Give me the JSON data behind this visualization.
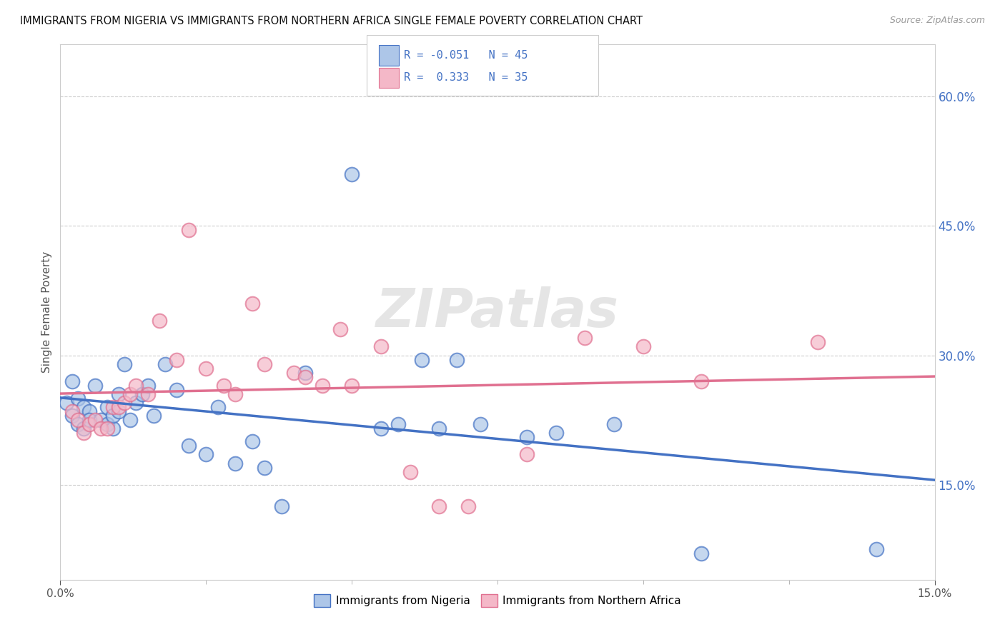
{
  "title": "IMMIGRANTS FROM NIGERIA VS IMMIGRANTS FROM NORTHERN AFRICA SINGLE FEMALE POVERTY CORRELATION CHART",
  "source": "Source: ZipAtlas.com",
  "ylabel": "Single Female Poverty",
  "y_ticks": [
    0.15,
    0.3,
    0.45,
    0.6
  ],
  "y_tick_labels": [
    "15.0%",
    "30.0%",
    "45.0%",
    "60.0%"
  ],
  "x_range": [
    0.0,
    0.15
  ],
  "y_range": [
    0.04,
    0.66
  ],
  "legend_label1": "Immigrants from Nigeria",
  "legend_label2": "Immigrants from Northern Africa",
  "watermark": "ZIPatlas",
  "nigeria_color": "#adc6e8",
  "nigeria_line_color": "#4472c4",
  "n_africa_color": "#f4b8c8",
  "n_africa_line_color": "#e07090",
  "nigeria_R": -0.051,
  "n_africa_R": 0.333,
  "nigeria_N": 45,
  "n_africa_N": 35,
  "nigeria_x": [
    0.001,
    0.002,
    0.002,
    0.003,
    0.003,
    0.004,
    0.004,
    0.005,
    0.005,
    0.006,
    0.007,
    0.008,
    0.008,
    0.009,
    0.009,
    0.01,
    0.01,
    0.011,
    0.012,
    0.013,
    0.014,
    0.015,
    0.016,
    0.018,
    0.02,
    0.022,
    0.025,
    0.027,
    0.03,
    0.033,
    0.035,
    0.038,
    0.042,
    0.05,
    0.055,
    0.058,
    0.062,
    0.065,
    0.068,
    0.072,
    0.08,
    0.085,
    0.095,
    0.11,
    0.14
  ],
  "nigeria_y": [
    0.245,
    0.27,
    0.23,
    0.25,
    0.22,
    0.24,
    0.215,
    0.235,
    0.225,
    0.265,
    0.225,
    0.24,
    0.22,
    0.215,
    0.23,
    0.255,
    0.235,
    0.29,
    0.225,
    0.245,
    0.255,
    0.265,
    0.23,
    0.29,
    0.26,
    0.195,
    0.185,
    0.24,
    0.175,
    0.2,
    0.17,
    0.125,
    0.28,
    0.51,
    0.215,
    0.22,
    0.295,
    0.215,
    0.295,
    0.22,
    0.205,
    0.21,
    0.22,
    0.07,
    0.075
  ],
  "n_africa_x": [
    0.002,
    0.003,
    0.004,
    0.005,
    0.006,
    0.007,
    0.008,
    0.009,
    0.01,
    0.011,
    0.012,
    0.013,
    0.015,
    0.017,
    0.02,
    0.022,
    0.025,
    0.028,
    0.03,
    0.033,
    0.035,
    0.04,
    0.042,
    0.045,
    0.048,
    0.05,
    0.055,
    0.06,
    0.065,
    0.07,
    0.08,
    0.09,
    0.1,
    0.11,
    0.13
  ],
  "n_africa_y": [
    0.235,
    0.225,
    0.21,
    0.22,
    0.225,
    0.215,
    0.215,
    0.24,
    0.24,
    0.245,
    0.255,
    0.265,
    0.255,
    0.34,
    0.295,
    0.445,
    0.285,
    0.265,
    0.255,
    0.36,
    0.29,
    0.28,
    0.275,
    0.265,
    0.33,
    0.265,
    0.31,
    0.165,
    0.125,
    0.125,
    0.185,
    0.32,
    0.31,
    0.27,
    0.315
  ]
}
